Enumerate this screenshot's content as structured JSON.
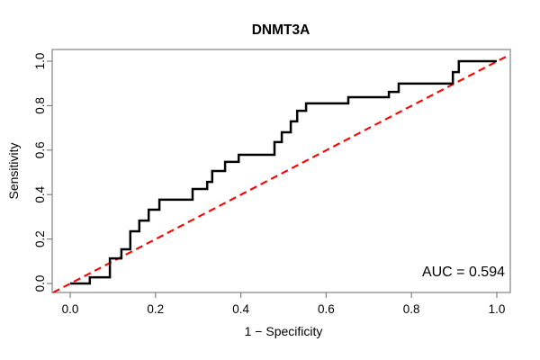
{
  "title": "DNMT3A",
  "axes": {
    "x_label": "1 − Specificity",
    "y_label": "Sensitivity",
    "x_ticks": {
      "values": [
        0,
        0.2,
        0.4,
        0.6,
        0.8,
        1.0
      ],
      "labels": [
        "0.0",
        "0.2",
        "0.4",
        "0.6",
        "0.8",
        "1.0"
      ]
    },
    "y_ticks": {
      "values": [
        0,
        0.2,
        0.4,
        0.6,
        0.8,
        1.0
      ],
      "labels": [
        "0.0",
        "0.2",
        "0.4",
        "0.6",
        "0.8",
        "1.0"
      ]
    }
  },
  "annotation": {
    "auc_label": "AUC = 0.594",
    "auc_value": 0.594
  },
  "colors": {
    "curve": "#000000",
    "reference_line": "#ff0000",
    "frame": "#777777",
    "text": "#000000",
    "background": "#ffffff"
  },
  "chart_data": {
    "type": "line",
    "subtype": "roc-step-curve",
    "title": "DNMT3A",
    "xlabel": "1 − Specificity",
    "ylabel": "Sensitivity",
    "xlim": [
      0,
      1
    ],
    "ylim": [
      0,
      1
    ],
    "grid": false,
    "legend": "none",
    "auc": 0.594,
    "series": [
      {
        "name": "ROC curve",
        "style": "step",
        "color": "#000000",
        "points": [
          [
            0.0,
            0.0
          ],
          [
            0.046,
            0.028
          ],
          [
            0.093,
            0.113
          ],
          [
            0.12,
            0.154
          ],
          [
            0.141,
            0.235
          ],
          [
            0.162,
            0.283
          ],
          [
            0.184,
            0.332
          ],
          [
            0.209,
            0.377
          ],
          [
            0.287,
            0.425
          ],
          [
            0.321,
            0.457
          ],
          [
            0.333,
            0.506
          ],
          [
            0.363,
            0.547
          ],
          [
            0.395,
            0.579
          ],
          [
            0.479,
            0.636
          ],
          [
            0.496,
            0.68
          ],
          [
            0.517,
            0.729
          ],
          [
            0.532,
            0.777
          ],
          [
            0.553,
            0.81
          ],
          [
            0.652,
            0.838
          ],
          [
            0.747,
            0.862
          ],
          [
            0.77,
            0.899
          ],
          [
            0.897,
            0.951
          ],
          [
            0.911,
            1.0
          ],
          [
            1.0,
            1.0
          ]
        ]
      },
      {
        "name": "chance diagonal",
        "style": "dashed",
        "color": "#ff0000",
        "points": [
          [
            0,
            0
          ],
          [
            1,
            1
          ]
        ]
      }
    ]
  }
}
